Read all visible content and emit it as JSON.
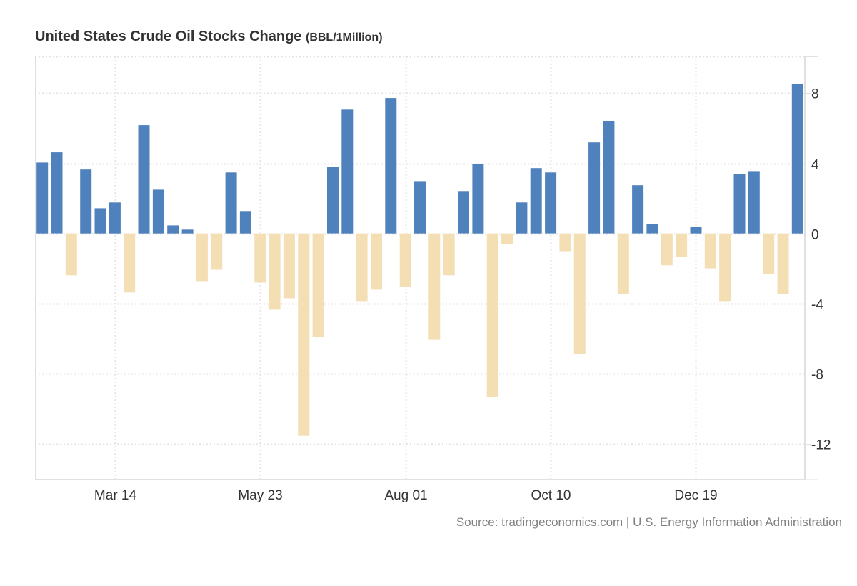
{
  "title": {
    "main": "United States Crude Oil Stocks Change",
    "unit": "(BBL/1Million)"
  },
  "source": "Source: tradingeconomics.com | U.S. Energy Information Administration",
  "colors": {
    "positive": "#4f81bd",
    "negative": "#f4deb4",
    "grid": "#e3e3e3",
    "axis": "#e0e0e0",
    "text": "#333333"
  },
  "chart_data": {
    "type": "bar",
    "title": "United States Crude Oil Stocks Change (BBL/1Million)",
    "xlabel": "",
    "ylabel": "",
    "ylim": [
      -14,
      10.1
    ],
    "yticks": [
      8,
      4,
      0,
      -4,
      -8,
      -12
    ],
    "ytick_labels": [
      "8",
      "4",
      "0",
      "-4",
      "-8",
      "-12"
    ],
    "y_axis_side": "right",
    "grid": true,
    "x_ticks": [
      {
        "index": 5,
        "label": "Mar 14"
      },
      {
        "index": 15,
        "label": "May 23"
      },
      {
        "index": 25,
        "label": "Aug 01"
      },
      {
        "index": 35,
        "label": "Oct 10"
      },
      {
        "index": 45,
        "label": "Dec 19"
      }
    ],
    "values": [
      4.05,
      4.63,
      -2.39,
      3.65,
      1.44,
      1.77,
      -3.37,
      6.18,
      2.5,
      0.46,
      0.22,
      -2.72,
      -2.07,
      3.48,
      1.28,
      -2.8,
      -4.35,
      -3.7,
      -11.54,
      -5.9,
      3.81,
      7.07,
      -3.86,
      -3.21,
      7.73,
      -3.05,
      2.99,
      -6.07,
      -2.39,
      2.42,
      3.97,
      -9.33,
      -0.6,
      1.77,
      3.73,
      3.48,
      -1.01,
      -6.88,
      5.2,
      6.42,
      -3.46,
      2.75,
      0.54,
      -1.82,
      -1.33,
      0.38,
      -1.99,
      -3.86,
      3.4,
      3.56,
      -2.31,
      -3.46,
      8.54
    ]
  }
}
